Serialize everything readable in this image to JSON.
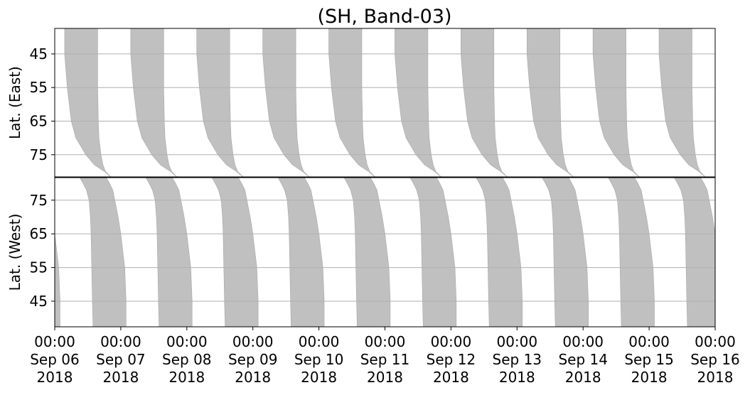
{
  "chart_data": [
    {
      "type": "band",
      "title": "(SH, Band-03)",
      "ylabel": "Lat. (East)",
      "ylim": [
        81.6,
        37.4
      ],
      "yticks": [
        45,
        55,
        65,
        75
      ],
      "grid": true,
      "color": "#c0c0c0",
      "profile": {
        "lat": [
          37.4,
          45,
          55,
          65,
          70,
          75,
          78,
          80,
          81.6
        ],
        "left": [
          0,
          0,
          0.04,
          0.1,
          0.17,
          0.32,
          0.45,
          0.6,
          0.7
        ],
        "right": [
          0.5,
          0.5,
          0.5,
          0.51,
          0.52,
          0.55,
          0.58,
          0.62,
          0.7
        ]
      },
      "starts": [
        0.15,
        1.15,
        2.15,
        3.15,
        4.15,
        5.15,
        6.15,
        7.15,
        8.15,
        9.15
      ]
    },
    {
      "type": "band",
      "ylabel": "Lat. (West)",
      "ylim": [
        37.4,
        81.7
      ],
      "yticks": [
        45,
        55,
        65,
        75
      ],
      "grid": true,
      "color": "#c0c0c0",
      "profile": {
        "lat": [
          81.7,
          80,
          78,
          75,
          70,
          65,
          55,
          45,
          37.4
        ],
        "left": [
          0,
          0.05,
          0.1,
          0.14,
          0.16,
          0.17,
          0.18,
          0.19,
          0.2
        ],
        "right": [
          0.4,
          0.45,
          0.5,
          0.53,
          0.58,
          0.62,
          0.68,
          0.7,
          0.7
        ]
      },
      "starts": [
        -0.62,
        0.38,
        1.38,
        2.38,
        3.38,
        4.38,
        5.38,
        6.38,
        7.38,
        8.38,
        9.38
      ],
      "xlim": [
        0,
        10
      ],
      "xticks": [
        {
          "value": 0,
          "label": "00:00\nSep 06\n2018"
        },
        {
          "value": 1,
          "label": "00:00\nSep 07\n2018"
        },
        {
          "value": 2,
          "label": "00:00\nSep 08\n2018"
        },
        {
          "value": 3,
          "label": "00:00\nSep 09\n2018"
        },
        {
          "value": 4,
          "label": "00:00\nSep 10\n2018"
        },
        {
          "value": 5,
          "label": "00:00\nSep 11\n2018"
        },
        {
          "value": 6,
          "label": "00:00\nSep 12\n2018"
        },
        {
          "value": 7,
          "label": "00:00\nSep 13\n2018"
        },
        {
          "value": 8,
          "label": "00:00\nSep 14\n2018"
        },
        {
          "value": 9,
          "label": "00:00\nSep 15\n2018"
        },
        {
          "value": 10,
          "label": "00:00\nSep 16\n2018"
        }
      ]
    }
  ]
}
